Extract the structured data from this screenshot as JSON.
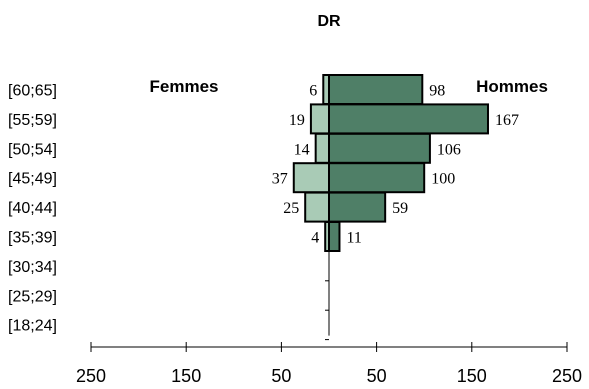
{
  "chart_data": {
    "type": "bar",
    "orientation": "horizontal",
    "title": "DR",
    "categories": [
      "[60;65]",
      "[55;59]",
      "[50;54]",
      "[45;49]",
      "[40;44]",
      "[35;39]",
      "[30;34]",
      "[25;29]",
      "[18;24]"
    ],
    "series": [
      {
        "name": "Femmes",
        "values": [
          6,
          19,
          14,
          37,
          25,
          4,
          0,
          0,
          0
        ],
        "color": "#a9cbb6",
        "labels": [
          "6",
          "19",
          "14",
          "37",
          "25",
          "4",
          "",
          "",
          ""
        ]
      },
      {
        "name": "Hommes",
        "values": [
          98,
          167,
          106,
          100,
          59,
          11,
          0,
          0,
          0
        ],
        "color": "#4f7f67",
        "labels": [
          "98",
          "167",
          "106",
          "100",
          "59",
          "11",
          "",
          "",
          ""
        ]
      }
    ],
    "xlim": [
      -250,
      250
    ],
    "x_ticks": [
      -250,
      -150,
      -50,
      50,
      150,
      250
    ],
    "x_tick_labels": [
      "250",
      "150",
      "50",
      "50",
      "150",
      "250"
    ],
    "grid": false,
    "legend": "top"
  }
}
